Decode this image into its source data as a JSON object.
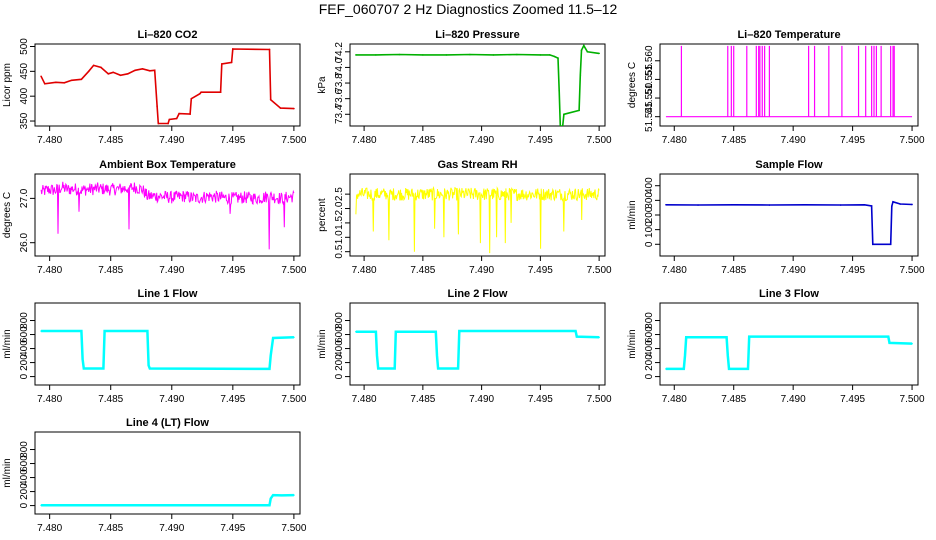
{
  "title": "FEF_060707  2 Hz Diagnostics Zoomed 11.5–12",
  "colors": {
    "co2": "#e00000",
    "pressure": "#00b000",
    "temperature": "#ff00ff",
    "box_temperature": "#ff00ff",
    "rh": "#ffff00",
    "sample_flow": "#0000cc",
    "line_flow": "#00ffff"
  },
  "chart_data": [
    {
      "type": "line",
      "title": "Li–820 CO2",
      "ylabel": "Licor ppm",
      "color": "#e00000",
      "xlim": [
        7.4788,
        7.5005
      ],
      "ylim": [
        340,
        505
      ],
      "xticks": [
        "7.480",
        "7.485",
        "7.490",
        "7.495",
        "7.500"
      ],
      "yticks": [
        "350",
        "400",
        "450",
        "500"
      ],
      "x": [
        7.4793,
        7.4796,
        7.4805,
        7.4812,
        7.4818,
        7.4826,
        7.4832,
        7.4836,
        7.4842,
        7.4848,
        7.4852,
        7.4858,
        7.4864,
        7.487,
        7.4876,
        7.4882,
        7.4886,
        7.4888,
        7.4889,
        7.4897,
        7.4898,
        7.4904,
        7.4906,
        7.4915,
        7.4916,
        7.4923,
        7.4924,
        7.494,
        7.4941,
        7.4949,
        7.495,
        7.498,
        7.4981,
        7.4989,
        7.5
      ],
      "values": [
        440,
        425,
        428,
        427,
        432,
        434,
        450,
        462,
        458,
        445,
        448,
        442,
        445,
        452,
        455,
        451,
        452,
        380,
        345,
        345,
        353,
        355,
        365,
        364,
        395,
        405,
        408,
        408,
        465,
        468,
        495,
        494,
        393,
        376,
        375
      ]
    },
    {
      "type": "line",
      "title": "Li–820 Pressure",
      "ylabel": "kPa",
      "color": "#00b000",
      "xlim": [
        7.4788,
        7.5005
      ],
      "ylim": [
        73.25,
        74.3
      ],
      "xticks": [
        "7.480",
        "7.485",
        "7.490",
        "7.495",
        "7.500"
      ],
      "yticks": [
        "73.4",
        "73.6",
        "73.8",
        "74.0",
        "74.2"
      ],
      "x": [
        7.4793,
        7.481,
        7.483,
        7.485,
        7.487,
        7.489,
        7.491,
        7.493,
        7.495,
        7.4958,
        7.4962,
        7.4965,
        7.4966,
        7.4967,
        7.4969,
        7.497,
        7.4983,
        7.4984,
        7.4985,
        7.4987,
        7.499,
        7.5
      ],
      "values": [
        74.16,
        74.16,
        74.165,
        74.16,
        74.16,
        74.165,
        74.16,
        74.165,
        74.16,
        74.16,
        74.14,
        74.12,
        73.7,
        73.25,
        73.25,
        73.4,
        73.45,
        73.9,
        74.22,
        74.28,
        74.2,
        74.18
      ]
    },
    {
      "type": "line",
      "title": "Li–820 Temperature",
      "ylabel": "degrees C",
      "color": "#ff00ff",
      "xlim": [
        7.4788,
        7.5005
      ],
      "ylim": [
        51.5425,
        51.5645
      ],
      "xticks": [
        "7.480",
        "7.485",
        "7.490",
        "7.495",
        "7.500"
      ],
      "yticks": [
        "51.545",
        "51.550",
        "51.555",
        "51.560"
      ],
      "ytick_values": [
        51.545,
        51.55,
        51.555,
        51.56
      ],
      "baseline": 51.545,
      "spike_value": 51.564,
      "spikes": [
        7.4806,
        7.4845,
        7.4848,
        7.485,
        7.4861,
        7.4869,
        7.4871,
        7.4872,
        7.4874,
        7.4876,
        7.488,
        7.4913,
        7.4918,
        7.493,
        7.4941,
        7.4955,
        7.4961,
        7.4966,
        7.4968,
        7.497,
        7.4974,
        7.4982,
        7.4984,
        7.4985
      ]
    },
    {
      "type": "line",
      "title": "Ambient Box Temperature",
      "ylabel": "degrees C",
      "color": "#ff00ff",
      "xlim": [
        7.4788,
        7.5005
      ],
      "ylim": [
        25.7,
        27.55
      ],
      "xticks": [
        "7.480",
        "7.485",
        "7.490",
        "7.495",
        "7.500"
      ],
      "yticks": [
        "26.0",
        "27.0"
      ],
      "ytick_values": [
        26.0,
        27.0
      ],
      "x": [
        7.4793,
        7.48,
        7.4805,
        7.481,
        7.4815,
        7.482,
        7.4825,
        7.483,
        7.484,
        7.485,
        7.486,
        7.487,
        7.4876,
        7.488,
        7.489,
        7.49,
        7.491,
        7.492,
        7.493,
        7.494,
        7.495,
        7.496,
        7.497,
        7.498,
        7.499,
        7.5
      ],
      "values": [
        27.15,
        27.2,
        27.18,
        27.25,
        27.2,
        27.22,
        27.18,
        27.2,
        27.22,
        27.2,
        27.22,
        27.25,
        27.2,
        27.05,
        27.05,
        27.02,
        27.05,
        27.0,
        27.05,
        27.02,
        27.0,
        27.02,
        27.0,
        27.05,
        27.0,
        27.05
      ],
      "noise_amplitude": 0.28,
      "dips": [
        [
          7.4807,
          26.2
        ],
        [
          7.4865,
          26.3
        ],
        [
          7.498,
          25.85
        ],
        [
          7.4992,
          26.35
        ],
        [
          7.4824,
          26.7
        ],
        [
          7.4948,
          26.65
        ]
      ]
    },
    {
      "type": "line",
      "title": "Gas Stream RH",
      "ylabel": "percent",
      "color": "#ffff00",
      "xlim": [
        7.4788,
        7.5005
      ],
      "ylim": [
        0.35,
        3.2
      ],
      "xticks": [
        "7.480",
        "7.485",
        "7.490",
        "7.495",
        "7.500"
      ],
      "yticks": [
        "0.5",
        "1.0",
        "1.5",
        "2.0",
        "2.5"
      ],
      "ytick_values": [
        0.5,
        1.0,
        1.5,
        2.0,
        2.5
      ],
      "baseline": 2.5,
      "noise_amplitude": 0.45,
      "dips": [
        [
          7.4793,
          1.8
        ],
        [
          7.4808,
          1.2
        ],
        [
          7.4821,
          0.9
        ],
        [
          7.4843,
          0.5
        ],
        [
          7.486,
          1.3
        ],
        [
          7.4868,
          1.0
        ],
        [
          7.488,
          1.1
        ],
        [
          7.4899,
          0.8
        ],
        [
          7.4907,
          0.45
        ],
        [
          7.4913,
          1.0
        ],
        [
          7.492,
          0.8
        ],
        [
          7.4925,
          1.5
        ],
        [
          7.495,
          0.6
        ],
        [
          7.497,
          1.2
        ],
        [
          7.4985,
          1.6
        ]
      ]
    },
    {
      "type": "line",
      "title": "Sample Flow",
      "ylabel": "ml/min",
      "color": "#0000cc",
      "xlim": [
        7.4788,
        7.5005
      ],
      "ylim": [
        -80,
        480
      ],
      "xticks": [
        "7.480",
        "7.485",
        "7.490",
        "7.495",
        "7.500"
      ],
      "yticks": [
        "0",
        "100",
        "200",
        "300",
        "400"
      ],
      "ytick_values": [
        0,
        100,
        200,
        300,
        400
      ],
      "x": [
        7.4793,
        7.482,
        7.485,
        7.488,
        7.491,
        7.494,
        7.496,
        7.4966,
        7.4967,
        7.4982,
        7.4983,
        7.4984,
        7.499,
        7.5
      ],
      "values": [
        270,
        268,
        270,
        268,
        270,
        268,
        270,
        262,
        0,
        0,
        260,
        290,
        275,
        272
      ]
    },
    {
      "type": "line",
      "title": "Line 1 Flow",
      "ylabel": "ml/min",
      "color": "#00ffff",
      "xlim": [
        7.4788,
        7.5005
      ],
      "ylim": [
        -120,
        1050
      ],
      "xticks": [
        "7.480",
        "7.485",
        "7.490",
        "7.495",
        "7.500"
      ],
      "yticks": [
        "0",
        "200",
        "400",
        "600",
        "800"
      ],
      "ytick_values": [
        0,
        200,
        400,
        600,
        800
      ],
      "x": [
        7.4793,
        7.4826,
        7.4827,
        7.4828,
        7.4844,
        7.4845,
        7.488,
        7.4881,
        7.4882,
        7.498,
        7.4981,
        7.4983,
        7.5
      ],
      "values": [
        650,
        650,
        250,
        115,
        115,
        650,
        650,
        160,
        115,
        110,
        300,
        550,
        560
      ]
    },
    {
      "type": "line",
      "title": "Line 2 Flow",
      "ylabel": "ml/min",
      "color": "#00ffff",
      "xlim": [
        7.4788,
        7.5005
      ],
      "ylim": [
        -120,
        1050
      ],
      "xticks": [
        "7.480",
        "7.485",
        "7.490",
        "7.495",
        "7.500"
      ],
      "yticks": [
        "0",
        "200",
        "400",
        "600",
        "800"
      ],
      "ytick_values": [
        0,
        200,
        400,
        600,
        800
      ],
      "x": [
        7.4793,
        7.481,
        7.4811,
        7.4812,
        7.4826,
        7.4827,
        7.4861,
        7.4862,
        7.4863,
        7.488,
        7.4881,
        7.498,
        7.4981,
        7.5
      ],
      "values": [
        640,
        640,
        300,
        115,
        115,
        640,
        640,
        300,
        115,
        115,
        650,
        650,
        570,
        560
      ]
    },
    {
      "type": "line",
      "title": "Line 3 Flow",
      "ylabel": "ml/min",
      "color": "#00ffff",
      "xlim": [
        7.4788,
        7.5005
      ],
      "ylim": [
        -120,
        1050
      ],
      "xticks": [
        "7.480",
        "7.485",
        "7.490",
        "7.495",
        "7.500"
      ],
      "yticks": [
        "0",
        "200",
        "400",
        "600",
        "800"
      ],
      "ytick_values": [
        0,
        200,
        400,
        600,
        800
      ],
      "x": [
        7.4793,
        7.4808,
        7.4809,
        7.481,
        7.4844,
        7.4845,
        7.4846,
        7.4862,
        7.4863,
        7.498,
        7.4981,
        7.5
      ],
      "values": [
        110,
        110,
        300,
        560,
        560,
        300,
        110,
        110,
        570,
        570,
        480,
        470
      ]
    },
    {
      "type": "line",
      "title": "Line 4 (LT) Flow",
      "ylabel": "ml/min",
      "color": "#00ffff",
      "xlim": [
        7.4788,
        7.5005
      ],
      "ylim": [
        -120,
        1050
      ],
      "xticks": [
        "7.480",
        "7.485",
        "7.490",
        "7.495",
        "7.500"
      ],
      "yticks": [
        "0",
        "200",
        "400",
        "600",
        "800"
      ],
      "ytick_values": [
        0,
        200,
        400,
        600,
        800
      ],
      "x": [
        7.4793,
        7.485,
        7.49,
        7.495,
        7.498,
        7.4981,
        7.4983,
        7.499,
        7.5
      ],
      "values": [
        5,
        5,
        5,
        5,
        5,
        100,
        150,
        145,
        150
      ]
    }
  ]
}
